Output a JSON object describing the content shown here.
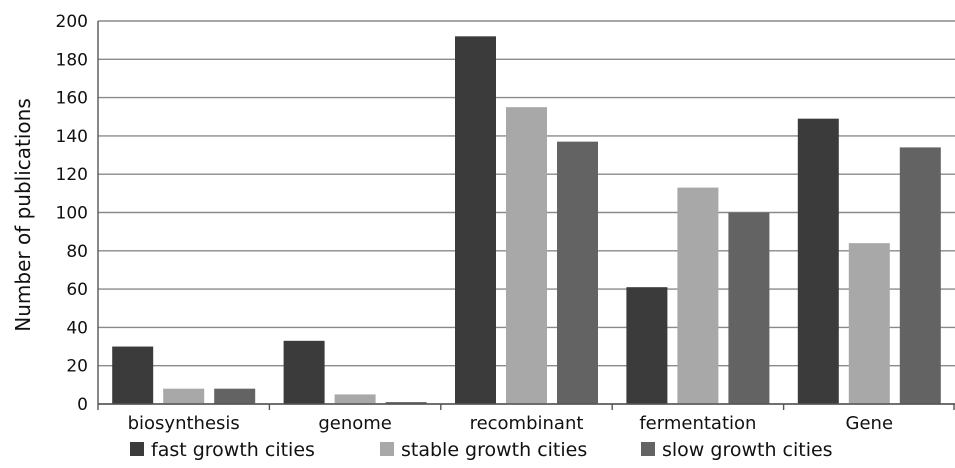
{
  "chart_data": {
    "type": "bar",
    "title": "",
    "xlabel": "",
    "ylabel": "Number of publications",
    "ylim": [
      0,
      200
    ],
    "yticks": [
      0,
      20,
      40,
      60,
      80,
      100,
      120,
      140,
      160,
      180,
      200
    ],
    "grid": "horizontal",
    "legend_position": "bottom",
    "categories": [
      "biosynthesis",
      "genome",
      "recombinant",
      "fermentation",
      "Gene"
    ],
    "series": [
      {
        "name": "fast growth cities",
        "color": "#3b3b3b",
        "values": [
          30,
          33,
          192,
          61,
          149
        ]
      },
      {
        "name": "stable growth cities",
        "color": "#a8a8a8",
        "values": [
          8,
          5,
          155,
          113,
          84
        ]
      },
      {
        "name": "slow growth cities",
        "color": "#636363",
        "values": [
          8,
          1,
          137,
          100,
          134
        ]
      }
    ]
  }
}
